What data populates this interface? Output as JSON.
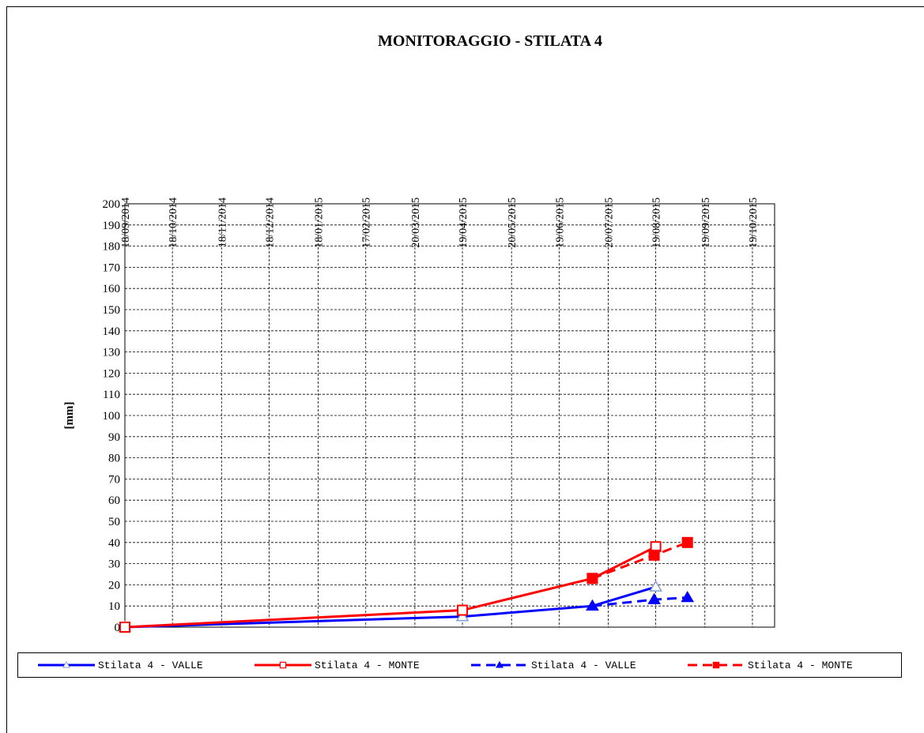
{
  "chart_data": {
    "type": "line",
    "title": "MONITORAGGIO  - STILATA 4",
    "y_label": "[mm]",
    "xlim": [
      "18/09/2014",
      "02/11/2015"
    ],
    "xticks": [
      "18/09/2014",
      "18/10/2014",
      "18/11/2014",
      "18/12/2014",
      "18/01/2015",
      "17/02/2015",
      "20/03/2015",
      "19/04/2015",
      "20/05/2015",
      "19/06/2015",
      "20/07/2015",
      "19/08/2015",
      "19/09/2015",
      "19/10/2015"
    ],
    "ylim": [
      0,
      200
    ],
    "yticks": [
      0,
      10,
      20,
      30,
      40,
      50,
      60,
      70,
      80,
      90,
      100,
      110,
      120,
      130,
      140,
      150,
      160,
      170,
      180,
      190,
      200
    ],
    "grid": true,
    "legend": "bottom",
    "series": [
      {
        "name": "Stilata 4 - VALLE",
        "color": "#0000ff",
        "dash": false,
        "marker": "triangle-open",
        "x": [
          "18/09/2014",
          "19/04/2015",
          "10/07/2015",
          "19/08/2015"
        ],
        "values": [
          0,
          5,
          10,
          19
        ]
      },
      {
        "name": "Stilata 4 - MONTE",
        "color": "#ff0000",
        "dash": false,
        "marker": "square-open",
        "x": [
          "18/09/2014",
          "19/04/2015",
          "10/07/2015",
          "19/08/2015"
        ],
        "values": [
          0,
          8,
          23,
          38
        ]
      },
      {
        "name": "Stilata 4 - VALLE",
        "color": "#0000ff",
        "dash": true,
        "marker": "triangle",
        "x": [
          "10/07/2015",
          "18/08/2015",
          "08/09/2015"
        ],
        "values": [
          10,
          13,
          14
        ]
      },
      {
        "name": "Stilata 4 - MONTE",
        "color": "#ff0000",
        "dash": true,
        "marker": "square",
        "x": [
          "10/07/2015",
          "18/08/2015",
          "08/09/2015"
        ],
        "values": [
          23,
          34,
          40
        ]
      }
    ]
  }
}
